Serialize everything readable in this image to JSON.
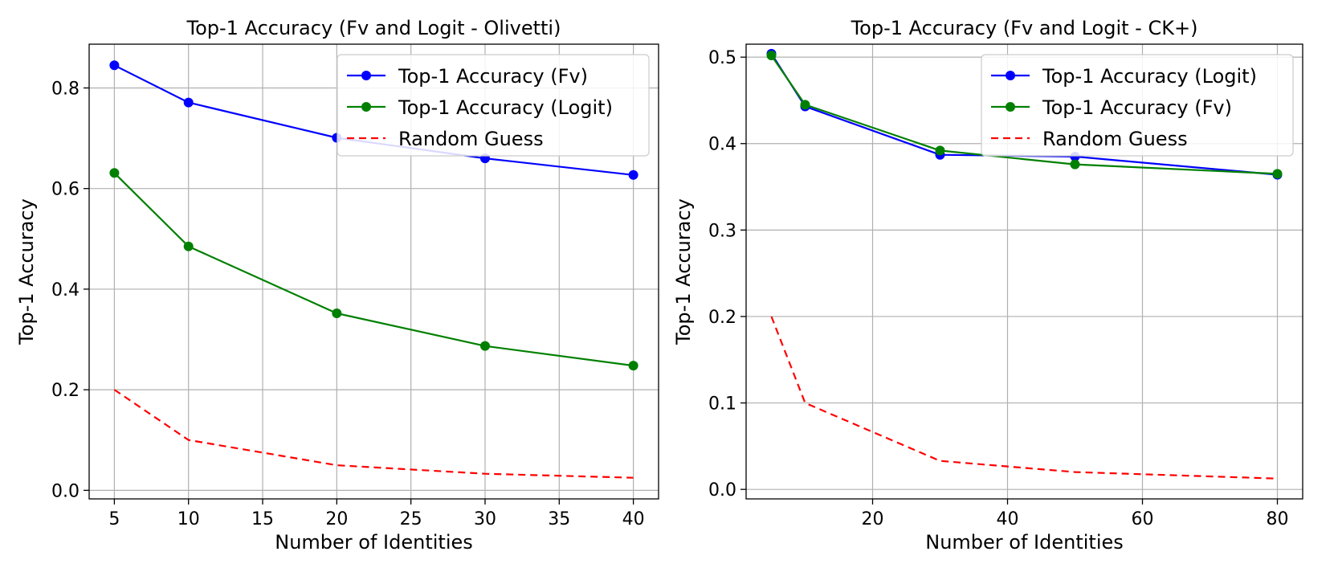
{
  "chart_data": [
    {
      "type": "line",
      "title": "Top-1 Accuracy (Fv and Logit - Olivetti)",
      "xlabel": "Number of Identities",
      "ylabel": "Top-1 Accuracy",
      "xlim": [
        3.3,
        41.7
      ],
      "ylim": [
        -0.017,
        0.887
      ],
      "xticks": [
        5,
        10,
        15,
        20,
        25,
        30,
        35,
        40
      ],
      "yticks": [
        0.0,
        0.2,
        0.4,
        0.6,
        0.8
      ],
      "ytick_labels": [
        "0.0",
        "0.2",
        "0.4",
        "0.6",
        "0.8"
      ],
      "grid": true,
      "legend_position": "upper-right",
      "series": [
        {
          "name": "Top-1 Accuracy (Fv)",
          "color": "#0000ff",
          "style": "solid",
          "marker": "circle",
          "x": [
            5,
            10,
            20,
            30,
            40
          ],
          "y": [
            0.845,
            0.771,
            0.701,
            0.66,
            0.627
          ]
        },
        {
          "name": "Top-1 Accuracy (Logit)",
          "color": "#008000",
          "style": "solid",
          "marker": "circle",
          "x": [
            5,
            10,
            20,
            30,
            40
          ],
          "y": [
            0.631,
            0.485,
            0.352,
            0.287,
            0.248
          ]
        },
        {
          "name": "Random Guess",
          "color": "#ff0000",
          "style": "dashed",
          "marker": "none",
          "x": [
            5,
            10,
            20,
            30,
            40
          ],
          "y": [
            0.2,
            0.1,
            0.05,
            0.033,
            0.025
          ]
        }
      ]
    },
    {
      "type": "line",
      "title": "Top-1 Accuracy (Fv and Logit - CK+)",
      "xlabel": "Number of Identities",
      "ylabel": "Top-1 Accuracy",
      "xlim": [
        1.25,
        83.75
      ],
      "ylim": [
        -0.011,
        0.515
      ],
      "xticks": [
        20,
        40,
        60,
        80
      ],
      "yticks": [
        0.0,
        0.1,
        0.2,
        0.3,
        0.4,
        0.5
      ],
      "ytick_labels": [
        "0.0",
        "0.1",
        "0.2",
        "0.3",
        "0.4",
        "0.5"
      ],
      "grid": true,
      "legend_position": "upper-right",
      "series": [
        {
          "name": "Top-1 Accuracy (Logit)",
          "color": "#0000ff",
          "style": "solid",
          "marker": "circle",
          "x": [
            5,
            10,
            30,
            50,
            80
          ],
          "y": [
            0.504,
            0.443,
            0.387,
            0.385,
            0.364
          ]
        },
        {
          "name": "Top-1 Accuracy (Fv)",
          "color": "#008000",
          "style": "solid",
          "marker": "circle",
          "x": [
            5,
            10,
            30,
            50,
            80
          ],
          "y": [
            0.502,
            0.445,
            0.392,
            0.376,
            0.365
          ]
        },
        {
          "name": "Random Guess",
          "color": "#ff0000",
          "style": "dashed",
          "marker": "none",
          "x": [
            5,
            10,
            30,
            50,
            80
          ],
          "y": [
            0.2,
            0.1,
            0.033,
            0.02,
            0.0125
          ]
        }
      ]
    }
  ]
}
